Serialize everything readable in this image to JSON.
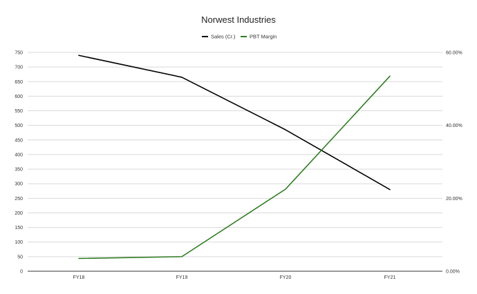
{
  "chart_data": {
    "type": "line",
    "title": "Norwest Industries",
    "categories": [
      "FY18",
      "FY19",
      "FY20",
      "FY21"
    ],
    "series": [
      {
        "name": "Sales (Cr.)",
        "axis": "left",
        "color": "#000000",
        "values": [
          740,
          665,
          485,
          280
        ]
      },
      {
        "name": "PBT Margin",
        "axis": "right",
        "color": "#2d7a1f",
        "values": [
          0.035,
          0.04,
          0.225,
          0.535
        ]
      }
    ],
    "y_left": {
      "min": 0,
      "max": 750,
      "ticks": [
        "0",
        "50",
        "100",
        "150",
        "200",
        "250",
        "300",
        "350",
        "400",
        "450",
        "500",
        "550",
        "600",
        "650",
        "700",
        "750"
      ]
    },
    "y_right": {
      "min": 0,
      "max": 0.6,
      "ticks": [
        "0.00%",
        "20.00%",
        "40.00%",
        "60.00%"
      ]
    },
    "legend_position": "top-center",
    "grid": true
  }
}
